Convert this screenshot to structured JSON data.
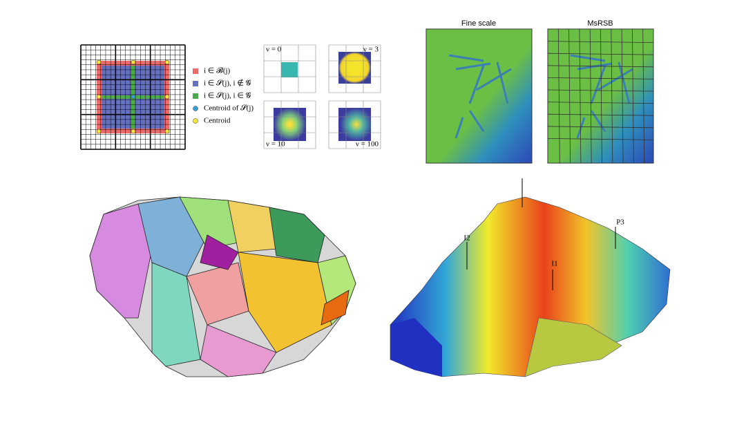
{
  "legend": [
    "i ∈ 𝓑(j)",
    "i ∈ 𝓢(j), i ∉ 𝓖",
    "i ∈ 𝓢(j), i ∈ 𝓖",
    "Centroid of 𝓢(j)",
    "Centroid"
  ],
  "nu_labels": [
    "ν = 0",
    "ν = 3",
    "ν = 10",
    "ν = 100"
  ],
  "map_titles": [
    "Fine scale",
    "MsRSB"
  ],
  "wells": [
    "I2",
    "I1",
    "P3"
  ]
}
